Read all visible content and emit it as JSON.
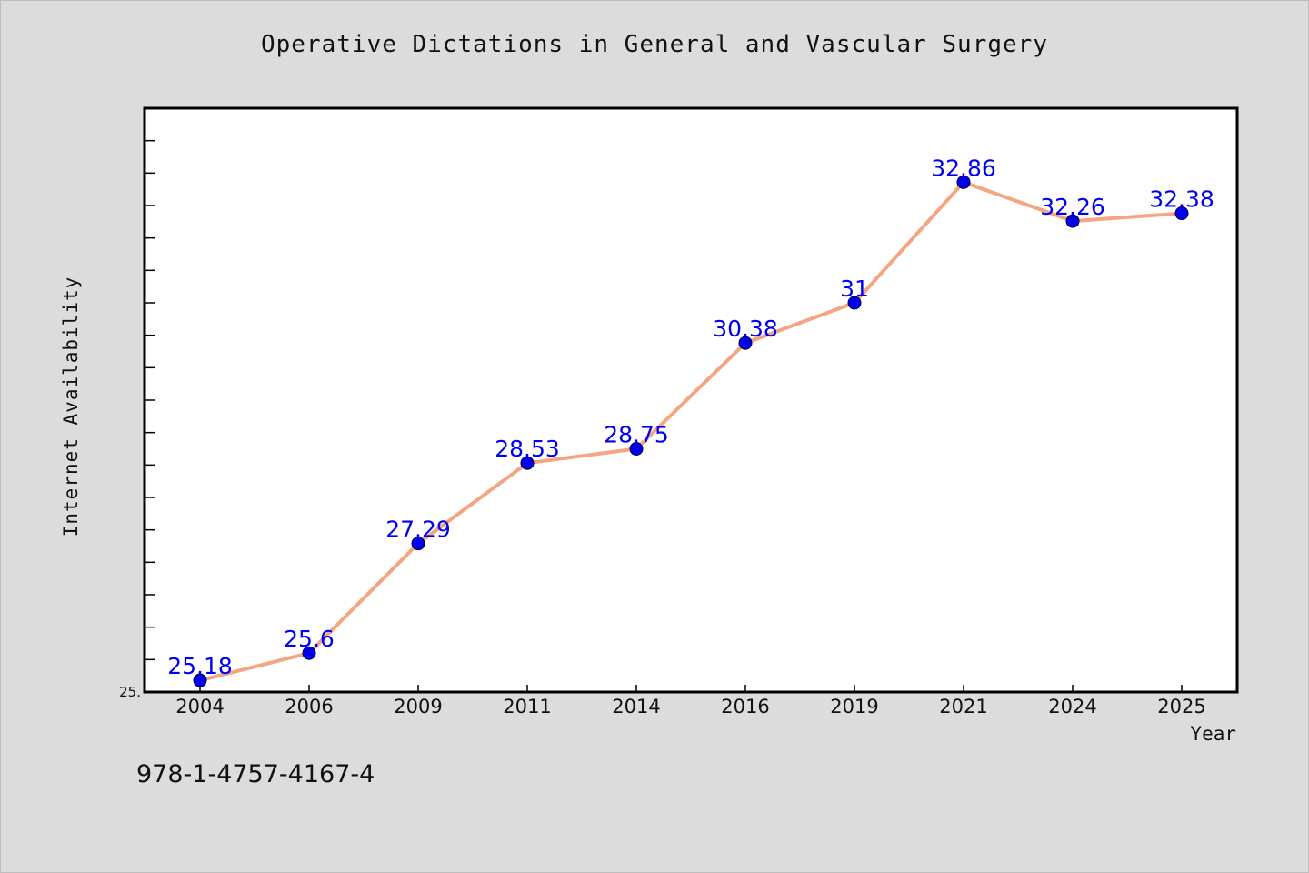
{
  "chart_data": {
    "type": "line",
    "title": "Operative Dictations in General and Vascular Surgery",
    "xlabel": "Year",
    "ylabel": "Internet Availability",
    "categories": [
      "2004",
      "2006",
      "2009",
      "2011",
      "2014",
      "2016",
      "2019",
      "2021",
      "2024",
      "2025"
    ],
    "series": [
      {
        "values": [
          25.18,
          25.6,
          27.29,
          28.53,
          28.75,
          30.38,
          31,
          32.86,
          32.26,
          32.38
        ],
        "line_color": "#f4a582",
        "marker_color": "#0000ee",
        "label_color": "#0000ee",
        "labels": [
          "25.18",
          "25.6",
          "27.29",
          "28.53",
          "28.75",
          "30.38",
          "31",
          "32.86",
          "32.26",
          "32.38"
        ]
      }
    ],
    "ylim": [
      25,
      34
    ],
    "y_tick_label": "25.",
    "grid": false,
    "legend": "none"
  },
  "footer": {
    "isbn": "978-1-4757-4167-4"
  },
  "colors": {
    "background": "#dcdcdc",
    "plot_background": "#ffffff",
    "axis": "#000000"
  }
}
